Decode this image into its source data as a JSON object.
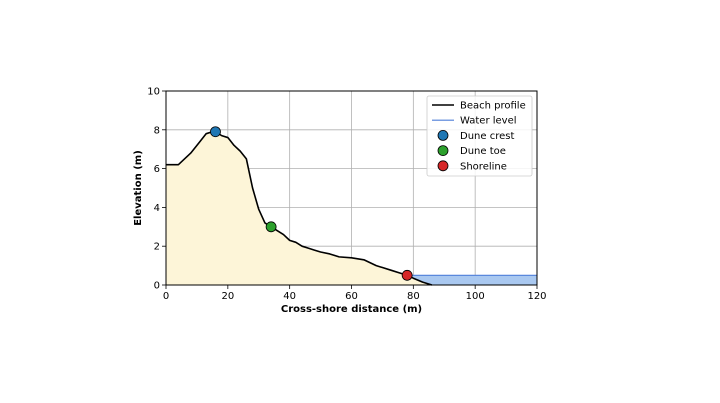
{
  "chart_data": {
    "type": "line",
    "xlabel": "Cross-shore distance (m)",
    "ylabel": "Elevation (m)",
    "xlim": [
      0,
      120
    ],
    "ylim": [
      0,
      10
    ],
    "xticks": [
      0,
      20,
      40,
      60,
      80,
      100,
      120
    ],
    "yticks": [
      0,
      2,
      4,
      6,
      8,
      10
    ],
    "grid": true,
    "legend_position": "top-right",
    "colors": {
      "profile": "#000000",
      "sand_fill": "#fdf5d8",
      "water_line": "#4f7fd9",
      "water_fill": "#a9c8f0",
      "dune_crest": "#1f77b4",
      "dune_toe": "#2ca02c",
      "shoreline": "#d62728"
    },
    "series": [
      {
        "name": "Beach profile",
        "x": [
          0,
          4,
          8,
          11,
          13,
          15,
          16,
          18,
          20,
          22,
          24,
          26,
          28,
          30,
          32,
          34,
          36,
          38,
          40,
          42,
          44,
          46,
          48,
          50,
          53,
          56,
          60,
          64,
          68,
          70,
          73,
          76,
          78,
          80,
          83,
          86
        ],
        "y": [
          6.2,
          6.2,
          6.8,
          7.4,
          7.8,
          7.9,
          7.9,
          7.7,
          7.6,
          7.2,
          6.9,
          6.5,
          5.0,
          3.9,
          3.2,
          3.0,
          2.8,
          2.6,
          2.3,
          2.2,
          2.0,
          1.9,
          1.8,
          1.7,
          1.6,
          1.45,
          1.4,
          1.3,
          1.0,
          0.9,
          0.75,
          0.6,
          0.5,
          0.35,
          0.15,
          0.0
        ]
      },
      {
        "name": "Water level",
        "level": 0.5,
        "x_start": 78,
        "x_end": 120
      }
    ],
    "markers": [
      {
        "name": "Dune crest",
        "x": 16,
        "y": 7.9
      },
      {
        "name": "Dune toe",
        "x": 34,
        "y": 3.0
      },
      {
        "name": "Shoreline",
        "x": 78,
        "y": 0.5
      }
    ]
  }
}
